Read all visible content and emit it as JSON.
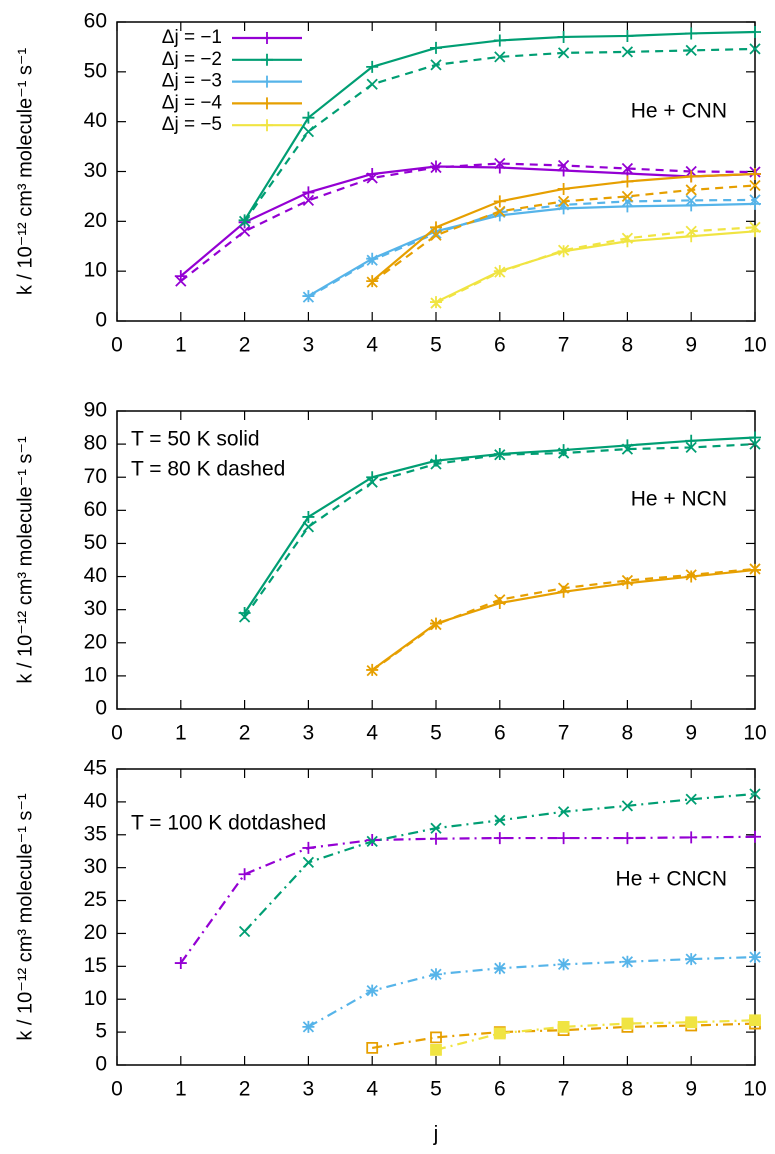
{
  "chart_data": [
    {
      "type": "line",
      "y_label": "k / 10⁻¹² cm³ molecule⁻¹ s⁻¹",
      "annotations": [
        "He + CNN"
      ],
      "legend": "top-left",
      "xlim": [
        0,
        10
      ],
      "xticks": [
        0,
        1,
        2,
        3,
        4,
        5,
        6,
        7,
        8,
        9,
        10
      ],
      "ylim": [
        0,
        60
      ],
      "yticks": [
        0,
        10,
        20,
        30,
        40,
        50,
        60
      ],
      "series": [
        {
          "name": "Δj = −1",
          "color": "#9400d3",
          "line_style": "solid",
          "marker": "plus",
          "x": [
            1,
            2,
            3,
            4,
            5,
            6,
            7,
            8,
            9,
            10
          ],
          "values": [
            9,
            19.8,
            25.8,
            29.5,
            31,
            30.8,
            30.2,
            29.6,
            29,
            29.5
          ]
        },
        {
          "color": "#9400d3",
          "line_style": "dashed",
          "marker": "cross",
          "x": [
            1,
            2,
            3,
            4,
            5,
            6,
            7,
            8,
            9,
            10
          ],
          "values": [
            8,
            18,
            24.2,
            28.7,
            30.8,
            31.6,
            31.2,
            30.6,
            30,
            29.9
          ]
        },
        {
          "name": "Δj = −2",
          "color": "#009e73",
          "line_style": "solid",
          "marker": "plus",
          "x": [
            2,
            3,
            4,
            5,
            6,
            7,
            8,
            9,
            10
          ],
          "values": [
            20.2,
            40.8,
            51,
            54.8,
            56.3,
            57,
            57.2,
            57.7,
            58
          ]
        },
        {
          "color": "#009e73",
          "line_style": "dashed",
          "marker": "cross",
          "x": [
            2,
            3,
            4,
            5,
            6,
            7,
            8,
            9,
            10
          ],
          "values": [
            20,
            38,
            47.5,
            51.4,
            53,
            53.8,
            54,
            54.3,
            54.6
          ]
        },
        {
          "name": "Δj = −3",
          "color": "#56b4e9",
          "line_style": "solid",
          "marker": "plus",
          "x": [
            3,
            4,
            5,
            6,
            7,
            8,
            9,
            10
          ],
          "values": [
            5,
            12.5,
            18,
            21.2,
            22.6,
            23,
            23.2,
            23.5
          ]
        },
        {
          "color": "#56b4e9",
          "line_style": "dashed",
          "marker": "cross",
          "x": [
            3,
            4,
            5,
            6,
            7,
            8,
            9,
            10
          ],
          "values": [
            4.8,
            12.2,
            17.6,
            21.8,
            23.3,
            24,
            24.2,
            24.3
          ]
        },
        {
          "name": "Δj = −4",
          "color": "#e69f00",
          "line_style": "solid",
          "marker": "plus",
          "x": [
            4,
            5,
            6,
            7,
            8,
            9,
            10
          ],
          "values": [
            8,
            18.8,
            24,
            26.5,
            28,
            29,
            29.5
          ]
        },
        {
          "color": "#e69f00",
          "line_style": "dashed",
          "marker": "cross",
          "x": [
            4,
            5,
            6,
            7,
            8,
            9,
            10
          ],
          "values": [
            7.8,
            17.2,
            22,
            24,
            25,
            26.3,
            27.2
          ]
        },
        {
          "name": "Δj = −5",
          "color": "#f0e442",
          "line_style": "solid",
          "marker": "plus",
          "x": [
            5,
            6,
            7,
            8,
            9,
            10
          ],
          "values": [
            3.8,
            10,
            14,
            16,
            17,
            18
          ]
        },
        {
          "color": "#f0e442",
          "line_style": "dashed",
          "marker": "cross",
          "x": [
            5,
            6,
            7,
            8,
            9,
            10
          ],
          "values": [
            3.6,
            9.8,
            14.2,
            16.6,
            18,
            18.8
          ]
        }
      ]
    },
    {
      "type": "line",
      "y_label": "k / 10⁻¹² cm³ molecule⁻¹ s⁻¹",
      "annotations": [
        "T = 50 K solid",
        "T = 80 K dashed",
        "He + NCN"
      ],
      "xlim": [
        0,
        10
      ],
      "xticks": [
        0,
        1,
        2,
        3,
        4,
        5,
        6,
        7,
        8,
        9,
        10
      ],
      "ylim": [
        0,
        90
      ],
      "yticks": [
        0,
        10,
        20,
        30,
        40,
        50,
        60,
        70,
        80,
        90
      ],
      "series": [
        {
          "color": "#009e73",
          "line_style": "solid",
          "marker": "plus",
          "x": [
            2,
            3,
            4,
            5,
            6,
            7,
            8,
            9,
            10
          ],
          "values": [
            29,
            58,
            70,
            75,
            77,
            78.2,
            79.6,
            81,
            82
          ]
        },
        {
          "color": "#009e73",
          "line_style": "dashed",
          "marker": "cross",
          "x": [
            2,
            3,
            4,
            5,
            6,
            7,
            8,
            9,
            10
          ],
          "values": [
            27.8,
            55,
            68.5,
            74,
            76.8,
            77.3,
            78.5,
            79,
            80
          ]
        },
        {
          "color": "#e69f00",
          "line_style": "solid",
          "marker": "plus",
          "x": [
            4,
            5,
            6,
            7,
            8,
            9,
            10
          ],
          "values": [
            11.8,
            25.8,
            32,
            35.4,
            38,
            40,
            42
          ]
        },
        {
          "color": "#e69f00",
          "line_style": "dashed",
          "marker": "cross",
          "x": [
            4,
            5,
            6,
            7,
            8,
            9,
            10
          ],
          "values": [
            11.6,
            25.5,
            33,
            36.5,
            38.8,
            40.5,
            42.3
          ]
        }
      ]
    },
    {
      "type": "line",
      "y_label": "k / 10⁻¹² cm³ molecule⁻¹ s⁻¹",
      "x_label": "j",
      "annotations": [
        "T = 100 K dotdashed",
        "He + CNCN"
      ],
      "xlim": [
        0,
        10
      ],
      "xticks": [
        0,
        1,
        2,
        3,
        4,
        5,
        6,
        7,
        8,
        9,
        10
      ],
      "ylim": [
        0,
        45
      ],
      "yticks": [
        0,
        5,
        10,
        15,
        20,
        25,
        30,
        35,
        40,
        45
      ],
      "series": [
        {
          "color": "#9400d3",
          "line_style": "dotdash",
          "marker": "plus",
          "x": [
            1,
            2,
            3,
            4,
            5,
            6,
            7,
            8,
            9,
            10
          ],
          "values": [
            15.5,
            29,
            33,
            34.2,
            34.4,
            34.5,
            34.5,
            34.5,
            34.6,
            34.7
          ]
        },
        {
          "color": "#009e73",
          "line_style": "dotdash",
          "marker": "cross",
          "x": [
            2,
            3,
            4,
            5,
            6,
            7,
            8,
            9,
            10
          ],
          "values": [
            20.3,
            30.8,
            34,
            36,
            37.2,
            38.5,
            39.4,
            40.4,
            41.2
          ]
        },
        {
          "color": "#56b4e9",
          "line_style": "dotdash",
          "marker": "asterisk",
          "x": [
            3,
            4,
            5,
            6,
            7,
            8,
            9,
            10
          ],
          "values": [
            5.8,
            11.3,
            13.8,
            14.7,
            15.3,
            15.7,
            16.1,
            16.4
          ]
        },
        {
          "color": "#e69f00",
          "line_style": "dotdash",
          "marker": "square",
          "x": [
            4,
            5,
            6,
            7,
            8,
            9,
            10
          ],
          "values": [
            2.6,
            4.2,
            5,
            5.3,
            5.8,
            6,
            6.3
          ]
        },
        {
          "color": "#f0e442",
          "line_style": "dotdash",
          "marker": "filled-square",
          "x": [
            5,
            6,
            7,
            8,
            9,
            10
          ],
          "values": [
            2.3,
            4.8,
            5.8,
            6.3,
            6.5,
            6.8
          ]
        }
      ]
    }
  ]
}
